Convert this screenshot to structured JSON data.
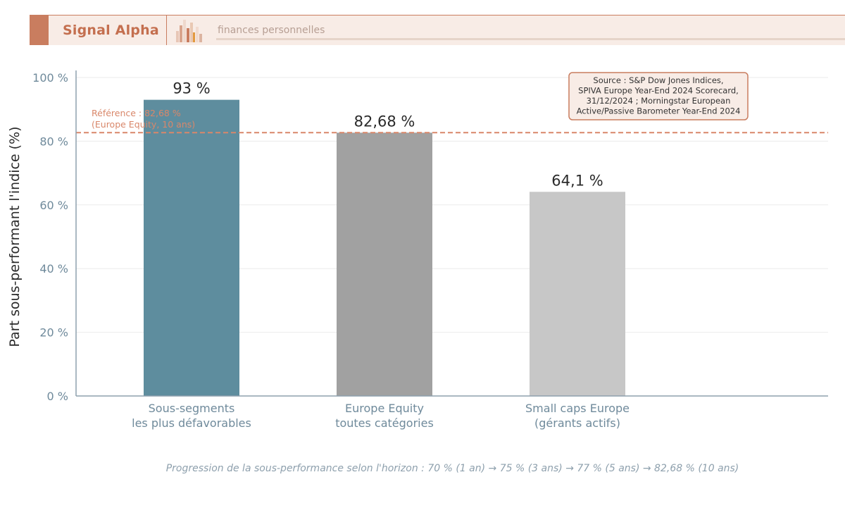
{
  "header": {
    "brand": "Signal Alpha",
    "tagline": "finances personnelles",
    "colors": {
      "accent": "#c97d5f",
      "background": "#f8ece6"
    }
  },
  "chart_data": {
    "type": "bar",
    "categories": [
      [
        "Sous-segments",
        "les plus défavorables"
      ],
      [
        "Europe Equity",
        "toutes catégories"
      ],
      [
        "Small caps Europe",
        "(gérants actifs)"
      ]
    ],
    "values": [
      93,
      82.68,
      64.1
    ],
    "value_labels": [
      "93 %",
      "82,68 %",
      "64,1 %"
    ],
    "bar_colors": [
      "#5e8d9e",
      "#a1a1a1",
      "#c7c7c7"
    ],
    "ylabel": "Part sous-performant l'indice (%)",
    "ylim": [
      0,
      100
    ],
    "yticks": [
      0,
      20,
      40,
      60,
      80,
      100
    ],
    "ytick_labels": [
      "0 %",
      "20 %",
      "40 %",
      "60 %",
      "80 %",
      "100 %"
    ],
    "grid": true,
    "reference_line": {
      "value": 82.68,
      "color": "#d9876a",
      "label_lines": [
        "Référence : 82,68 %",
        "(Europe Equity, 10 ans)"
      ]
    },
    "source_box": {
      "lines": [
        "Source : S&P Dow Jones Indices,",
        "SPIVA Europe Year-End 2024 Scorecard,",
        "31/12/2024 ; Morningstar European",
        "Active/Passive Barometer Year-End 2024"
      ],
      "placement": "top-right"
    }
  },
  "footnote": "Progression de la sous-performance selon l'horizon : 70 % (1 an)  →  75 % (3 ans)  →  77 % (5 ans)  →  82,68 % (10 ans)"
}
